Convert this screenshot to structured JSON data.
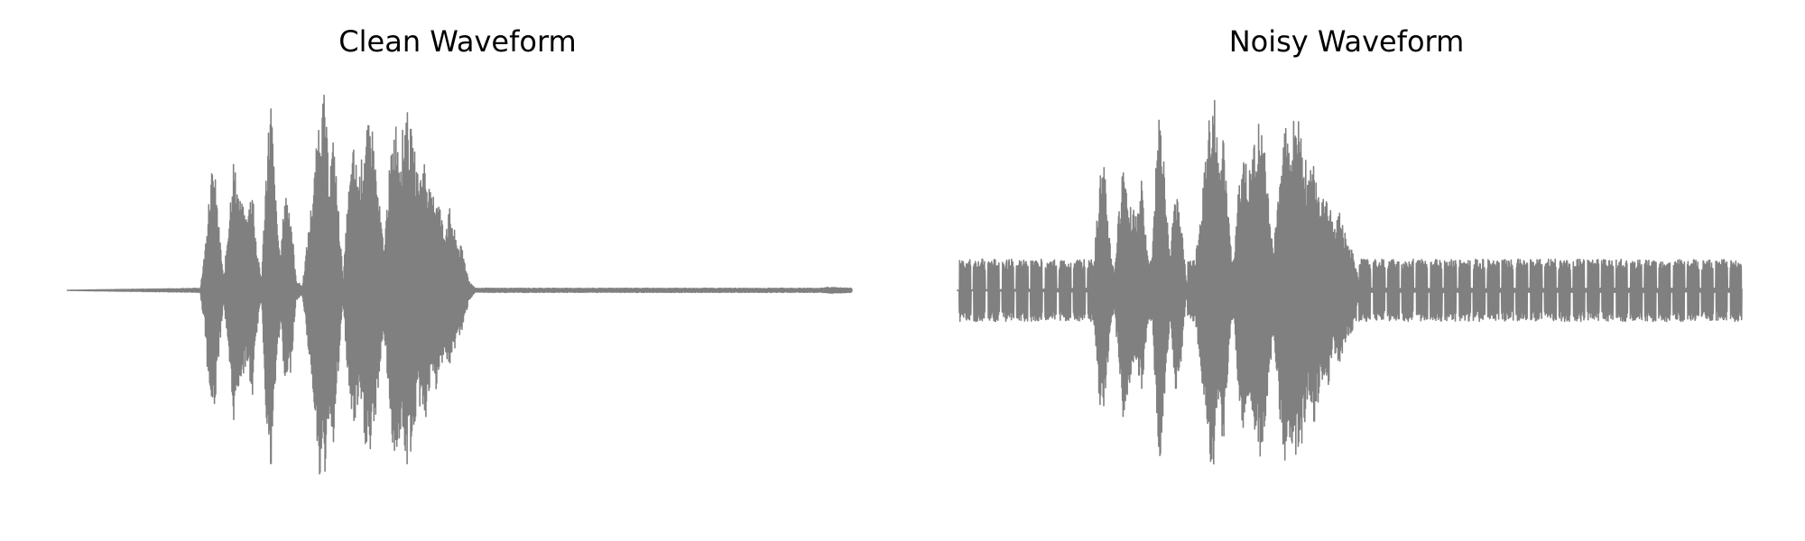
{
  "chart_data": [
    {
      "type": "line",
      "title": "Clean Waveform",
      "xlabel": "",
      "ylabel": "",
      "axes_visible": false,
      "grid": false,
      "line_color": "#808080",
      "x_range": [
        0,
        1
      ],
      "y_range": [
        -1,
        1
      ],
      "envelope": [
        {
          "x": 0.0,
          "amp": 0.0
        },
        {
          "x": 0.17,
          "amp": 0.01
        },
        {
          "x": 0.176,
          "amp": 0.2
        },
        {
          "x": 0.182,
          "amp": 0.55
        },
        {
          "x": 0.188,
          "amp": 0.6
        },
        {
          "x": 0.194,
          "amp": 0.3
        },
        {
          "x": 0.2,
          "amp": 0.05
        },
        {
          "x": 0.205,
          "amp": 0.3
        },
        {
          "x": 0.212,
          "amp": 0.65
        },
        {
          "x": 0.22,
          "amp": 0.45
        },
        {
          "x": 0.23,
          "amp": 0.35
        },
        {
          "x": 0.236,
          "amp": 0.55
        },
        {
          "x": 0.242,
          "amp": 0.2
        },
        {
          "x": 0.248,
          "amp": 0.05
        },
        {
          "x": 0.255,
          "amp": 0.7
        },
        {
          "x": 0.26,
          "amp": 0.95
        },
        {
          "x": 0.266,
          "amp": 0.45
        },
        {
          "x": 0.272,
          "amp": 0.15
        },
        {
          "x": 0.278,
          "amp": 0.5
        },
        {
          "x": 0.285,
          "amp": 0.4
        },
        {
          "x": 0.292,
          "amp": 0.05
        },
        {
          "x": 0.3,
          "amp": 0.02
        },
        {
          "x": 0.308,
          "amp": 0.3
        },
        {
          "x": 0.315,
          "amp": 0.55
        },
        {
          "x": 0.322,
          "amp": 0.9
        },
        {
          "x": 0.328,
          "amp": 0.95
        },
        {
          "x": 0.334,
          "amp": 0.6
        },
        {
          "x": 0.34,
          "amp": 0.75
        },
        {
          "x": 0.346,
          "amp": 0.4
        },
        {
          "x": 0.352,
          "amp": 0.05
        },
        {
          "x": 0.358,
          "amp": 0.45
        },
        {
          "x": 0.365,
          "amp": 0.7
        },
        {
          "x": 0.372,
          "amp": 0.55
        },
        {
          "x": 0.38,
          "amp": 0.75
        },
        {
          "x": 0.388,
          "amp": 0.85
        },
        {
          "x": 0.396,
          "amp": 0.5
        },
        {
          "x": 0.404,
          "amp": 0.2
        },
        {
          "x": 0.41,
          "amp": 0.55
        },
        {
          "x": 0.418,
          "amp": 0.85
        },
        {
          "x": 0.425,
          "amp": 0.7
        },
        {
          "x": 0.432,
          "amp": 0.9
        },
        {
          "x": 0.44,
          "amp": 0.75
        },
        {
          "x": 0.448,
          "amp": 0.55
        },
        {
          "x": 0.456,
          "amp": 0.65
        },
        {
          "x": 0.464,
          "amp": 0.45
        },
        {
          "x": 0.472,
          "amp": 0.5
        },
        {
          "x": 0.48,
          "amp": 0.3
        },
        {
          "x": 0.488,
          "amp": 0.4
        },
        {
          "x": 0.496,
          "amp": 0.25
        },
        {
          "x": 0.504,
          "amp": 0.2
        },
        {
          "x": 0.512,
          "amp": 0.05
        },
        {
          "x": 0.52,
          "amp": 0.01
        },
        {
          "x": 0.96,
          "amp": 0.01
        },
        {
          "x": 0.97,
          "amp": 0.015
        },
        {
          "x": 1.0,
          "amp": 0.01
        }
      ]
    },
    {
      "type": "line",
      "title": "Noisy Waveform",
      "xlabel": "",
      "ylabel": "",
      "axes_visible": false,
      "grid": false,
      "line_color": "#808080",
      "x_range": [
        0,
        1
      ],
      "y_range": [
        -1,
        1
      ],
      "background_tone": {
        "amplitude": 0.15,
        "bursts": 55
      },
      "envelope": [
        {
          "x": 0.0,
          "amp": 0.0
        },
        {
          "x": 0.17,
          "amp": 0.01
        },
        {
          "x": 0.176,
          "amp": 0.2
        },
        {
          "x": 0.182,
          "amp": 0.55
        },
        {
          "x": 0.188,
          "amp": 0.6
        },
        {
          "x": 0.194,
          "amp": 0.3
        },
        {
          "x": 0.2,
          "amp": 0.05
        },
        {
          "x": 0.205,
          "amp": 0.3
        },
        {
          "x": 0.212,
          "amp": 0.65
        },
        {
          "x": 0.22,
          "amp": 0.45
        },
        {
          "x": 0.23,
          "amp": 0.35
        },
        {
          "x": 0.236,
          "amp": 0.55
        },
        {
          "x": 0.242,
          "amp": 0.2
        },
        {
          "x": 0.248,
          "amp": 0.05
        },
        {
          "x": 0.255,
          "amp": 0.7
        },
        {
          "x": 0.26,
          "amp": 0.95
        },
        {
          "x": 0.266,
          "amp": 0.45
        },
        {
          "x": 0.272,
          "amp": 0.15
        },
        {
          "x": 0.278,
          "amp": 0.5
        },
        {
          "x": 0.285,
          "amp": 0.4
        },
        {
          "x": 0.292,
          "amp": 0.05
        },
        {
          "x": 0.3,
          "amp": 0.02
        },
        {
          "x": 0.308,
          "amp": 0.3
        },
        {
          "x": 0.315,
          "amp": 0.55
        },
        {
          "x": 0.322,
          "amp": 0.9
        },
        {
          "x": 0.328,
          "amp": 0.95
        },
        {
          "x": 0.334,
          "amp": 0.6
        },
        {
          "x": 0.34,
          "amp": 0.75
        },
        {
          "x": 0.346,
          "amp": 0.4
        },
        {
          "x": 0.352,
          "amp": 0.05
        },
        {
          "x": 0.358,
          "amp": 0.45
        },
        {
          "x": 0.365,
          "amp": 0.7
        },
        {
          "x": 0.372,
          "amp": 0.55
        },
        {
          "x": 0.38,
          "amp": 0.75
        },
        {
          "x": 0.388,
          "amp": 0.85
        },
        {
          "x": 0.396,
          "amp": 0.5
        },
        {
          "x": 0.404,
          "amp": 0.2
        },
        {
          "x": 0.41,
          "amp": 0.55
        },
        {
          "x": 0.418,
          "amp": 0.85
        },
        {
          "x": 0.425,
          "amp": 0.7
        },
        {
          "x": 0.432,
          "amp": 0.9
        },
        {
          "x": 0.44,
          "amp": 0.75
        },
        {
          "x": 0.448,
          "amp": 0.55
        },
        {
          "x": 0.456,
          "amp": 0.65
        },
        {
          "x": 0.464,
          "amp": 0.45
        },
        {
          "x": 0.472,
          "amp": 0.5
        },
        {
          "x": 0.48,
          "amp": 0.3
        },
        {
          "x": 0.488,
          "amp": 0.4
        },
        {
          "x": 0.496,
          "amp": 0.25
        },
        {
          "x": 0.504,
          "amp": 0.2
        },
        {
          "x": 0.512,
          "amp": 0.05
        },
        {
          "x": 0.52,
          "amp": 0.01
        },
        {
          "x": 1.0,
          "amp": 0.01
        }
      ]
    }
  ]
}
